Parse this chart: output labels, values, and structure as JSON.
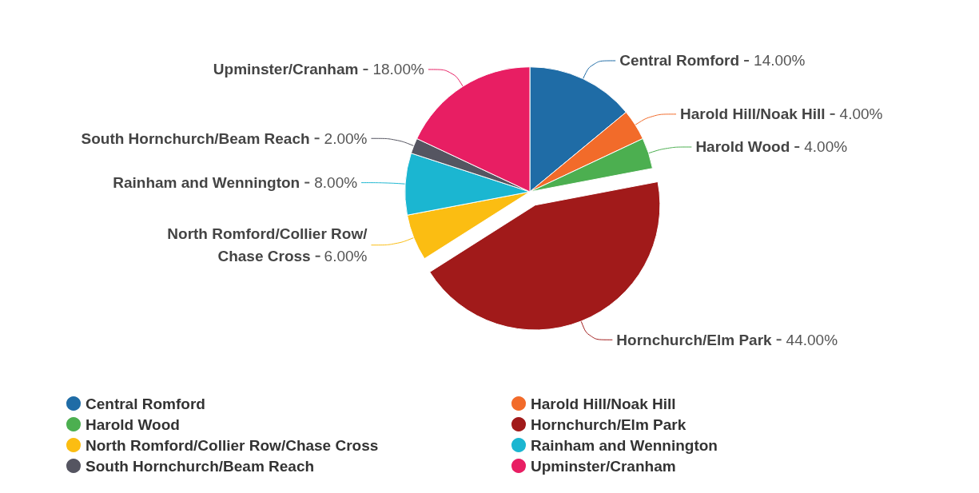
{
  "chart_data": {
    "type": "pie",
    "categories": [
      "Central Romford",
      "Harold Hill/Noak Hill",
      "Harold Wood",
      "Hornchurch/Elm Park",
      "North Romford/Collier Row/Chase Cross",
      "Rainham and Wennington",
      "South Hornchurch/Beam Reach",
      "Upminster/Cranham"
    ],
    "values": [
      14,
      4,
      4,
      44,
      6,
      8,
      2,
      18
    ],
    "colors": [
      "#1f6ca6",
      "#f26b2a",
      "#4caf50",
      "#a11a1a",
      "#fbbd12",
      "#1bb6d1",
      "#555561",
      "#e81e63"
    ],
    "value_labels": [
      "14.00%",
      "4.00%",
      "4.00%",
      "44.00%",
      "6.00%",
      "8.00%",
      "2.00%",
      "18.00%"
    ],
    "legend": "bottom"
  }
}
